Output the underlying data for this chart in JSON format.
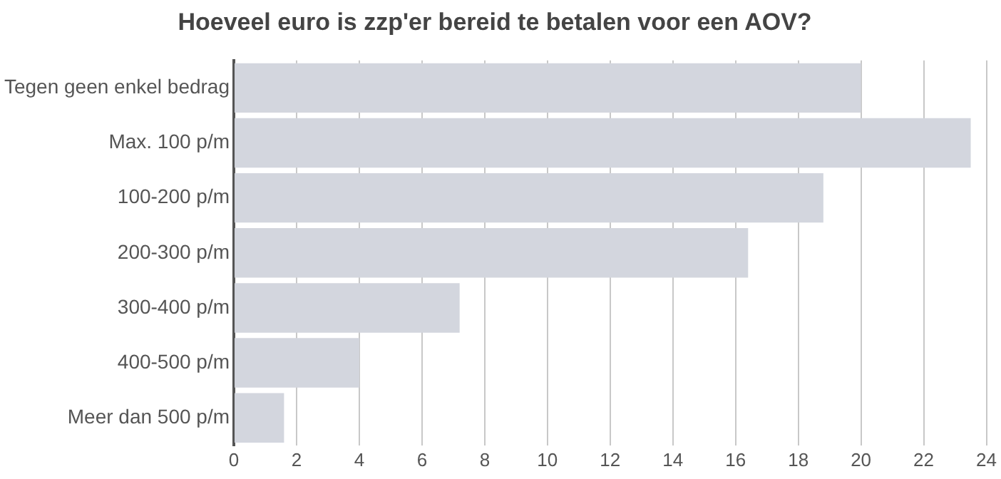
{
  "chart_data": {
    "type": "bar",
    "orientation": "horizontal",
    "title": "Hoeveel euro is zzp'er bereid te betalen voor een AOV?",
    "categories": [
      "Tegen geen enkel bedrag",
      "Max. 100 p/m",
      "100-200 p/m",
      "200-300 p/m",
      "300-400 p/m",
      "400-500 p/m",
      "Meer dan 500 p/m"
    ],
    "values": [
      20,
      23.5,
      18.8,
      16.4,
      7.2,
      4,
      1.6
    ],
    "color": "#d3d6de",
    "xlim": [
      0,
      24
    ],
    "xticks": [
      0,
      2,
      4,
      6,
      8,
      10,
      12,
      14,
      16,
      18,
      20,
      22,
      24
    ],
    "grid": "x"
  }
}
